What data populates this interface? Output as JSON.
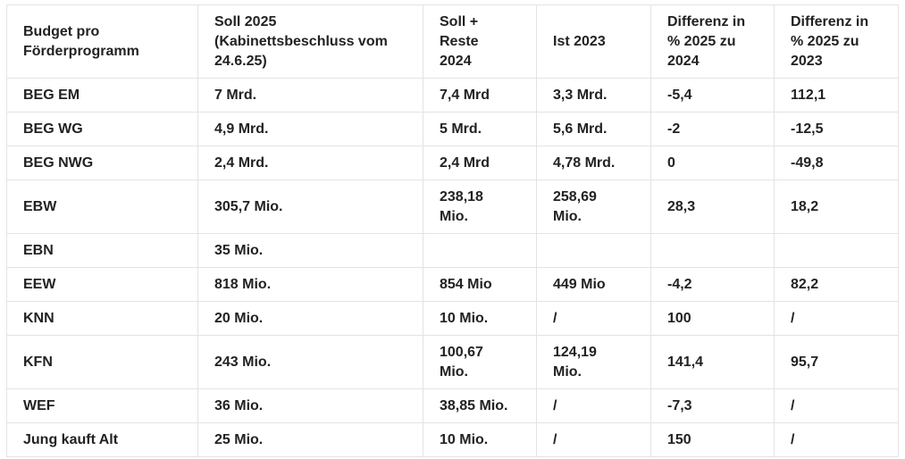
{
  "table": {
    "headers": [
      "Budget pro Förderprogramm",
      "Soll 2025 (Kabinettsbeschluss vom 24.6.25)",
      "Soll + Reste 2024",
      "Ist 2023",
      "Differenz in % 2025 zu 2024",
      "Differenz in % 2025 zu 2023"
    ],
    "header_lines": [
      [
        "Budget pro",
        "Förderprogramm"
      ],
      [
        "Soll 2025",
        "(Kabinettsbeschluss vom",
        "24.6.25)"
      ],
      [
        "Soll +",
        "Reste",
        "2024"
      ],
      [
        "Ist 2023"
      ],
      [
        "Differenz in",
        "% 2025 zu",
        "2024"
      ],
      [
        "Differenz in",
        "% 2025 zu",
        "2023"
      ]
    ],
    "rows": [
      [
        "BEG EM",
        "7 Mrd.",
        "7,4 Mrd",
        "3,3 Mrd.",
        "-5,4",
        "112,1"
      ],
      [
        "BEG WG",
        "4,9 Mrd.",
        "5 Mrd.",
        "5,6 Mrd.",
        "-2",
        "-12,5"
      ],
      [
        "BEG NWG",
        "2,4 Mrd.",
        "2,4 Mrd",
        "4,78 Mrd.",
        "0",
        "-49,8"
      ],
      [
        "EBW",
        "305,7 Mio.",
        "238,18 Mio.",
        "258,69 Mio.",
        "28,3",
        "18,2"
      ],
      [
        "EBN",
        "35 Mio.",
        "",
        "",
        "",
        ""
      ],
      [
        "EEW",
        "818 Mio.",
        "854 Mio",
        "449 Mio",
        "-4,2",
        "82,2"
      ],
      [
        "KNN",
        "20 Mio.",
        "10 Mio.",
        "/",
        "100",
        "/"
      ],
      [
        "KFN",
        "243 Mio.",
        "100,67 Mio.",
        "124,19 Mio.",
        "141,4",
        "95,7"
      ],
      [
        "WEF",
        "36 Mio.",
        "38,85 Mio.",
        "/",
        "-7,3",
        "/"
      ],
      [
        "Jung kauft Alt",
        "25 Mio.",
        "10 Mio.",
        "/",
        "150",
        "/"
      ]
    ],
    "cell_lines": {
      "3": {
        "2": [
          "238,18",
          "Mio."
        ],
        "3": [
          "258,69",
          "Mio."
        ]
      },
      "7": {
        "2": [
          "100,67",
          "Mio."
        ],
        "3": [
          "124,19",
          "Mio."
        ]
      }
    }
  }
}
